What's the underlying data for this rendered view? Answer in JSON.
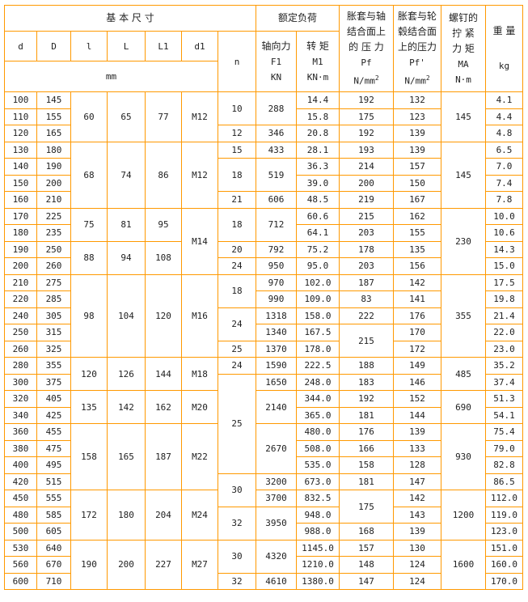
{
  "border_color": "#FF9900",
  "header": {
    "basic_dims": "基 本 尺 寸",
    "rated_load": "额定负荷",
    "shaft_pressure": [
      "胀套与轴",
      "结合面上",
      "的 压 力",
      "Pf",
      "N/mm",
      "2"
    ],
    "hub_pressure": [
      "胀套与轮",
      "毂结合面",
      "上的压力",
      "Pf'",
      "N/mm",
      "2"
    ],
    "screw_torque": [
      "螺钉的",
      "拧 紧",
      "力 矩",
      "MA",
      "N·m"
    ],
    "weight": [
      "重 量",
      "kg"
    ],
    "cols": [
      "d",
      "D",
      "l",
      "L",
      "L1",
      "d1"
    ],
    "n": "n",
    "axial_force": [
      "轴向力",
      "F1",
      "KN"
    ],
    "torque": [
      "转 矩",
      "M1",
      "KN·m"
    ],
    "unit_mm": "mm"
  },
  "columns": [
    "d",
    "D",
    "l",
    "L",
    "L1",
    "d1",
    "n",
    "F1",
    "M1",
    "Pf",
    "Pf2",
    "MA",
    "kg"
  ],
  "rows": [
    [
      [
        "100"
      ],
      [
        "145"
      ],
      [
        "60",
        3
      ],
      [
        "65",
        3
      ],
      [
        "77",
        3
      ],
      [
        "M12",
        3
      ],
      [
        "10",
        2
      ],
      [
        "288",
        2
      ],
      [
        "14.4"
      ],
      [
        "192"
      ],
      [
        "132"
      ],
      [
        "145",
        3
      ],
      [
        "4.1"
      ]
    ],
    [
      [
        "110"
      ],
      [
        "155"
      ],
      [
        "15.8"
      ],
      [
        "175"
      ],
      [
        "123"
      ],
      [
        "4.4"
      ]
    ],
    [
      [
        "120"
      ],
      [
        "165"
      ],
      [
        "12"
      ],
      [
        "346"
      ],
      [
        "20.8"
      ],
      [
        "192"
      ],
      [
        "139"
      ],
      [
        "4.8"
      ]
    ],
    [
      [
        "130"
      ],
      [
        "180"
      ],
      [
        "68",
        4
      ],
      [
        "74",
        4
      ],
      [
        "86",
        4
      ],
      [
        "M12",
        4
      ],
      [
        "15"
      ],
      [
        "433"
      ],
      [
        "28.1"
      ],
      [
        "193"
      ],
      [
        "139"
      ],
      [
        "145",
        4
      ],
      [
        "6.5"
      ]
    ],
    [
      [
        "140"
      ],
      [
        "190"
      ],
      [
        "18",
        2
      ],
      [
        "519",
        2
      ],
      [
        "36.3"
      ],
      [
        "214"
      ],
      [
        "157"
      ],
      [
        "7.0"
      ]
    ],
    [
      [
        "150"
      ],
      [
        "200"
      ],
      [
        "39.0"
      ],
      [
        "200"
      ],
      [
        "150"
      ],
      [
        "7.4"
      ]
    ],
    [
      [
        "160"
      ],
      [
        "210"
      ],
      [
        "21"
      ],
      [
        "606"
      ],
      [
        "48.5"
      ],
      [
        "219"
      ],
      [
        "167"
      ],
      [
        "7.8"
      ]
    ],
    [
      [
        "170"
      ],
      [
        "225"
      ],
      [
        "75",
        2
      ],
      [
        "81",
        2
      ],
      [
        "95",
        2
      ],
      [
        "M14",
        4
      ],
      [
        "18",
        2
      ],
      [
        "712",
        2
      ],
      [
        "60.6"
      ],
      [
        "215"
      ],
      [
        "162"
      ],
      [
        "230",
        4
      ],
      [
        "10.0"
      ]
    ],
    [
      [
        "180"
      ],
      [
        "235"
      ],
      [
        "64.1"
      ],
      [
        "203"
      ],
      [
        "155"
      ],
      [
        "10.6"
      ]
    ],
    [
      [
        "190"
      ],
      [
        "250"
      ],
      [
        "88",
        2
      ],
      [
        "94",
        2
      ],
      [
        "108",
        2
      ],
      [
        "20"
      ],
      [
        "792"
      ],
      [
        "75.2"
      ],
      [
        "178"
      ],
      [
        "135"
      ],
      [
        "14.3"
      ]
    ],
    [
      [
        "200"
      ],
      [
        "260"
      ],
      [
        "24"
      ],
      [
        "950"
      ],
      [
        "95.0"
      ],
      [
        "203"
      ],
      [
        "156"
      ],
      [
        "15.0"
      ]
    ],
    [
      [
        "210"
      ],
      [
        "275"
      ],
      [
        "98",
        5
      ],
      [
        "104",
        5
      ],
      [
        "120",
        5
      ],
      [
        "M16",
        5
      ],
      [
        "18",
        2
      ],
      [
        "970"
      ],
      [
        "102.0"
      ],
      [
        "187"
      ],
      [
        "142"
      ],
      [
        "355",
        5
      ],
      [
        "17.5"
      ]
    ],
    [
      [
        "220"
      ],
      [
        "285"
      ],
      [
        "990"
      ],
      [
        "109.0"
      ],
      [
        "83"
      ],
      [
        "141"
      ],
      [
        "19.8"
      ]
    ],
    [
      [
        "240"
      ],
      [
        "305"
      ],
      [
        "24",
        2
      ],
      [
        "1318"
      ],
      [
        "158.0"
      ],
      [
        "222"
      ],
      [
        "176"
      ],
      [
        "21.4"
      ]
    ],
    [
      [
        "250"
      ],
      [
        "315"
      ],
      [
        "1340"
      ],
      [
        "167.5"
      ],
      [
        "215",
        2
      ],
      [
        "170"
      ],
      [
        "22.0"
      ]
    ],
    [
      [
        "260"
      ],
      [
        "325"
      ],
      [
        "25"
      ],
      [
        "1370"
      ],
      [
        "178.0"
      ],
      [
        "172"
      ],
      [
        "23.0"
      ]
    ],
    [
      [
        "280"
      ],
      [
        "355"
      ],
      [
        "120",
        2
      ],
      [
        "126",
        2
      ],
      [
        "144",
        2
      ],
      [
        "M18",
        2
      ],
      [
        "24"
      ],
      [
        "1590"
      ],
      [
        "222.5"
      ],
      [
        "188"
      ],
      [
        "149"
      ],
      [
        "485",
        2
      ],
      [
        "35.2"
      ]
    ],
    [
      [
        "300"
      ],
      [
        "375"
      ],
      [
        "25",
        6
      ],
      [
        "1650"
      ],
      [
        "248.0"
      ],
      [
        "183"
      ],
      [
        "146"
      ],
      [
        "37.4"
      ]
    ],
    [
      [
        "320"
      ],
      [
        "405"
      ],
      [
        "135",
        2
      ],
      [
        "142",
        2
      ],
      [
        "162",
        2
      ],
      [
        "M20",
        2
      ],
      [
        "2140",
        2
      ],
      [
        "344.0"
      ],
      [
        "192"
      ],
      [
        "152"
      ],
      [
        "690",
        2
      ],
      [
        "51.3"
      ]
    ],
    [
      [
        "340"
      ],
      [
        "425"
      ],
      [
        "365.0"
      ],
      [
        "181"
      ],
      [
        "144"
      ],
      [
        "54.1"
      ]
    ],
    [
      [
        "360"
      ],
      [
        "455"
      ],
      [
        "158",
        4
      ],
      [
        "165",
        4
      ],
      [
        "187",
        4
      ],
      [
        "M22",
        4
      ],
      [
        "2670",
        3
      ],
      [
        "480.0"
      ],
      [
        "176"
      ],
      [
        "139"
      ],
      [
        "930",
        4
      ],
      [
        "75.4"
      ]
    ],
    [
      [
        "380"
      ],
      [
        "475"
      ],
      [
        "508.0"
      ],
      [
        "166"
      ],
      [
        "133"
      ],
      [
        "79.0"
      ]
    ],
    [
      [
        "400"
      ],
      [
        "495"
      ],
      [
        "535.0"
      ],
      [
        "158"
      ],
      [
        "128"
      ],
      [
        "82.8"
      ]
    ],
    [
      [
        "420"
      ],
      [
        "515"
      ],
      [
        "30",
        2
      ],
      [
        "3200"
      ],
      [
        "673.0"
      ],
      [
        "181"
      ],
      [
        "147"
      ],
      [
        "86.5"
      ]
    ],
    [
      [
        "450"
      ],
      [
        "555"
      ],
      [
        "172",
        3
      ],
      [
        "180",
        3
      ],
      [
        "204",
        3
      ],
      [
        "M24",
        3
      ],
      [
        "3700"
      ],
      [
        "832.5"
      ],
      [
        "175",
        2
      ],
      [
        "142"
      ],
      [
        "1200",
        3
      ],
      [
        "112.0"
      ]
    ],
    [
      [
        "480"
      ],
      [
        "585"
      ],
      [
        "32",
        2
      ],
      [
        "3950",
        2
      ],
      [
        "948.0"
      ],
      [
        "143"
      ],
      [
        "119.0"
      ]
    ],
    [
      [
        "500"
      ],
      [
        "605"
      ],
      [
        "988.0"
      ],
      [
        "168"
      ],
      [
        "139"
      ],
      [
        "123.0"
      ]
    ],
    [
      [
        "530"
      ],
      [
        "640"
      ],
      [
        "190",
        3
      ],
      [
        "200",
        3
      ],
      [
        "227",
        3
      ],
      [
        "M27",
        3
      ],
      [
        "30",
        2
      ],
      [
        "4320",
        2
      ],
      [
        "1145.0"
      ],
      [
        "157"
      ],
      [
        "130"
      ],
      [
        "1600",
        3
      ],
      [
        "151.0"
      ]
    ],
    [
      [
        "560"
      ],
      [
        "670"
      ],
      [
        "1210.0"
      ],
      [
        "148"
      ],
      [
        "124"
      ],
      [
        "160.0"
      ]
    ],
    [
      [
        "600"
      ],
      [
        "710"
      ],
      [
        "32"
      ],
      [
        "4610"
      ],
      [
        "1380.0"
      ],
      [
        "147"
      ],
      [
        "124"
      ],
      [
        "170.0"
      ]
    ]
  ]
}
